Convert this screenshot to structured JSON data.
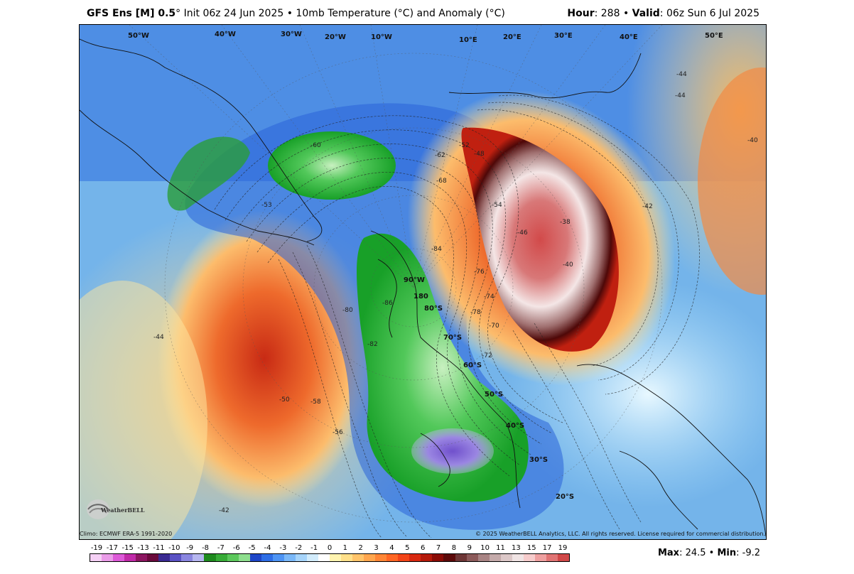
{
  "header": {
    "model": "GFS Ens [M] 0.5",
    "degree": "°",
    "init_text": " Init 06z 24 Jun 2025 • 10mb Temperature (°C) and Anomaly (°C)",
    "hour_label": "Hour",
    "hour_value": ": 288 • ",
    "valid_label": "Valid",
    "valid_value": ": 06z Sun 6 Jul 2025"
  },
  "footer": {
    "climo": "Climo: ECMWF ERA-5 1991-2020",
    "copyright": "© 2025 WeatherBELL Analytics, LLC. All rights reserved. License required for commercial distribution."
  },
  "stats": {
    "max_label": "Max",
    "max_value": ": 24.5 • ",
    "min_label": "Min",
    "min_value": ": -9.2"
  },
  "logo": {
    "text": "WeatherBELL"
  },
  "colorbar": {
    "ticks": [
      "-19",
      "-17",
      "-15",
      "-13",
      "-11",
      "-10",
      "-9",
      "-8",
      "-7",
      "-6",
      "-5",
      "-4",
      "-3",
      "-2",
      "-1",
      "0",
      "1",
      "2",
      "3",
      "4",
      "5",
      "6",
      "7",
      "8",
      "9",
      "10",
      "11",
      "13",
      "15",
      "17",
      "19"
    ],
    "colors": [
      "#f5d0f5",
      "#ea9ce8",
      "#dd5ad8",
      "#c02aa8",
      "#8c1660",
      "#6a0a3c",
      "#3a2a92",
      "#5a52c4",
      "#8a86e0",
      "#b6b6f0",
      "#1e8a1e",
      "#38ac38",
      "#5cc85c",
      "#8ede8e",
      "#1e46c8",
      "#2e6ee6",
      "#4e94f4",
      "#7ab8f8",
      "#a6d4fa",
      "#d2ecfc",
      "#ffffff",
      "#fff4b0",
      "#ffe08a",
      "#ffc46a",
      "#ffa64e",
      "#ff8636",
      "#ff6624",
      "#f24418",
      "#d82810",
      "#b41a0a",
      "#8a0c06",
      "#5c0a0a",
      "#6e3636",
      "#8c5a5a",
      "#a88484",
      "#c4aaaa",
      "#dcc8c8",
      "#f0e4e4",
      "#f6cccc",
      "#eea0a0",
      "#e07474",
      "#d04848"
    ]
  },
  "map_labels": {
    "lon": [
      "50°W",
      "40°W",
      "30°W",
      "20°W",
      "10°W",
      "10°E",
      "20°E",
      "30°E",
      "40°E",
      "50°E",
      "90°W",
      "180"
    ],
    "lat": [
      "80°S",
      "70°S",
      "60°S",
      "50°S",
      "40°S",
      "30°S",
      "20°S"
    ],
    "contours": [
      "-60",
      "-52",
      "-48",
      "-62",
      "-68",
      "-54",
      "-46",
      "-38",
      "-40",
      "-42",
      "-40",
      "-44",
      "-84",
      "-86",
      "-80",
      "-82",
      "-76",
      "-74",
      "-78",
      "-72",
      "-70",
      "-50",
      "-58",
      "-56",
      "-44",
      "-42",
      "-44",
      "-53"
    ]
  }
}
